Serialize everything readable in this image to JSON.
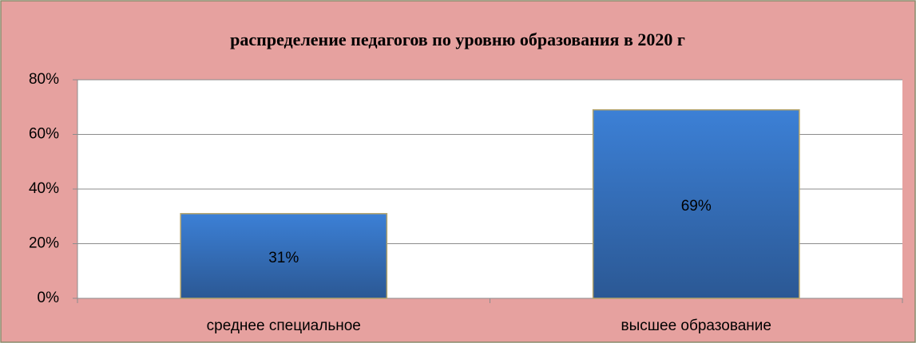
{
  "chart_data": {
    "type": "bar",
    "title": "распределение педагогов по уровню образования в 2020 г",
    "categories": [
      "среднее специальное",
      "высшее образование"
    ],
    "values": [
      31,
      69
    ],
    "value_labels": [
      "31%",
      "69%"
    ],
    "color": "#3670bd",
    "ylim": [
      0,
      80
    ],
    "yticks": [
      {
        "value": 0,
        "label": "0%"
      },
      {
        "value": 20,
        "label": "20%"
      },
      {
        "value": 40,
        "label": "40%"
      },
      {
        "value": 60,
        "label": "60%"
      },
      {
        "value": 80,
        "label": "80%"
      }
    ],
    "grid": true
  }
}
